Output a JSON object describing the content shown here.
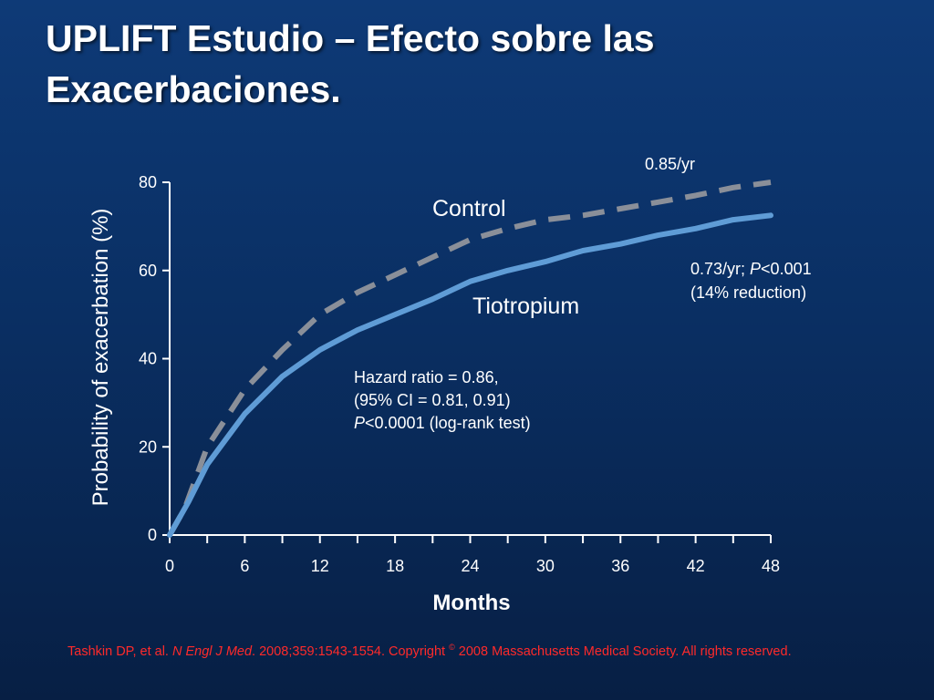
{
  "title_line1": "UPLIFT Estudio – Efecto sobre las",
  "title_line2": "Exacerbaciones.",
  "chart_data": {
    "type": "line",
    "xlabel": "Months",
    "ylabel": "Probability of exacerbation (%)",
    "xlim": [
      0,
      48
    ],
    "ylim": [
      0,
      80
    ],
    "x_ticks": [
      "0",
      "6",
      "12",
      "18",
      "24",
      "30",
      "36",
      "42",
      "48"
    ],
    "y_ticks": [
      "0",
      "20",
      "40",
      "60",
      "80"
    ],
    "series": [
      {
        "name": "Control",
        "style": "dashed",
        "color": "#8a8f99",
        "x": [
          0,
          1.2,
          3,
          6,
          9,
          12,
          15,
          18,
          21,
          24,
          27,
          30,
          33,
          36,
          39,
          42,
          45,
          48
        ],
        "y": [
          0,
          6,
          20,
          33,
          42,
          50,
          55,
          59,
          63,
          67,
          69.5,
          71.5,
          72.5,
          74,
          75.5,
          77,
          78.8,
          80
        ]
      },
      {
        "name": "Tiotropium",
        "style": "solid",
        "color": "#5f9cd6",
        "x": [
          0,
          1.5,
          3,
          6,
          9,
          12,
          15,
          18,
          21,
          24,
          27,
          30,
          33,
          36,
          39,
          42,
          45,
          48
        ],
        "y": [
          0,
          7.5,
          16,
          27.5,
          36,
          42,
          46.5,
          50,
          53.5,
          57.5,
          60,
          62,
          64.5,
          66,
          68,
          69.5,
          71.5,
          72.5
        ]
      }
    ],
    "annotations": {
      "control_rate": "0.85/yr",
      "tiotropium_rate_prefix": "0.73/yr; ",
      "tiotropium_rate_p": "P",
      "tiotropium_rate_suffix": "<0.001",
      "reduction": "(14% reduction)",
      "hazard_line1": "Hazard ratio = 0.86,",
      "hazard_line2": "(95% CI = 0.81, 0.91)",
      "hazard_line3_p": "P",
      "hazard_line3_rest": "<0.0001 (log-rank test)"
    },
    "grid": false,
    "legend": "inline labels"
  },
  "source": {
    "prefix": "Tashkin DP, et al. ",
    "journal": "N Engl J Med",
    "middle": ". 2008;359:1543-1554. Copyright ",
    "copyright_sign": "©",
    "suffix": " 2008 Massachusetts Medical Society. All rights reserved."
  }
}
